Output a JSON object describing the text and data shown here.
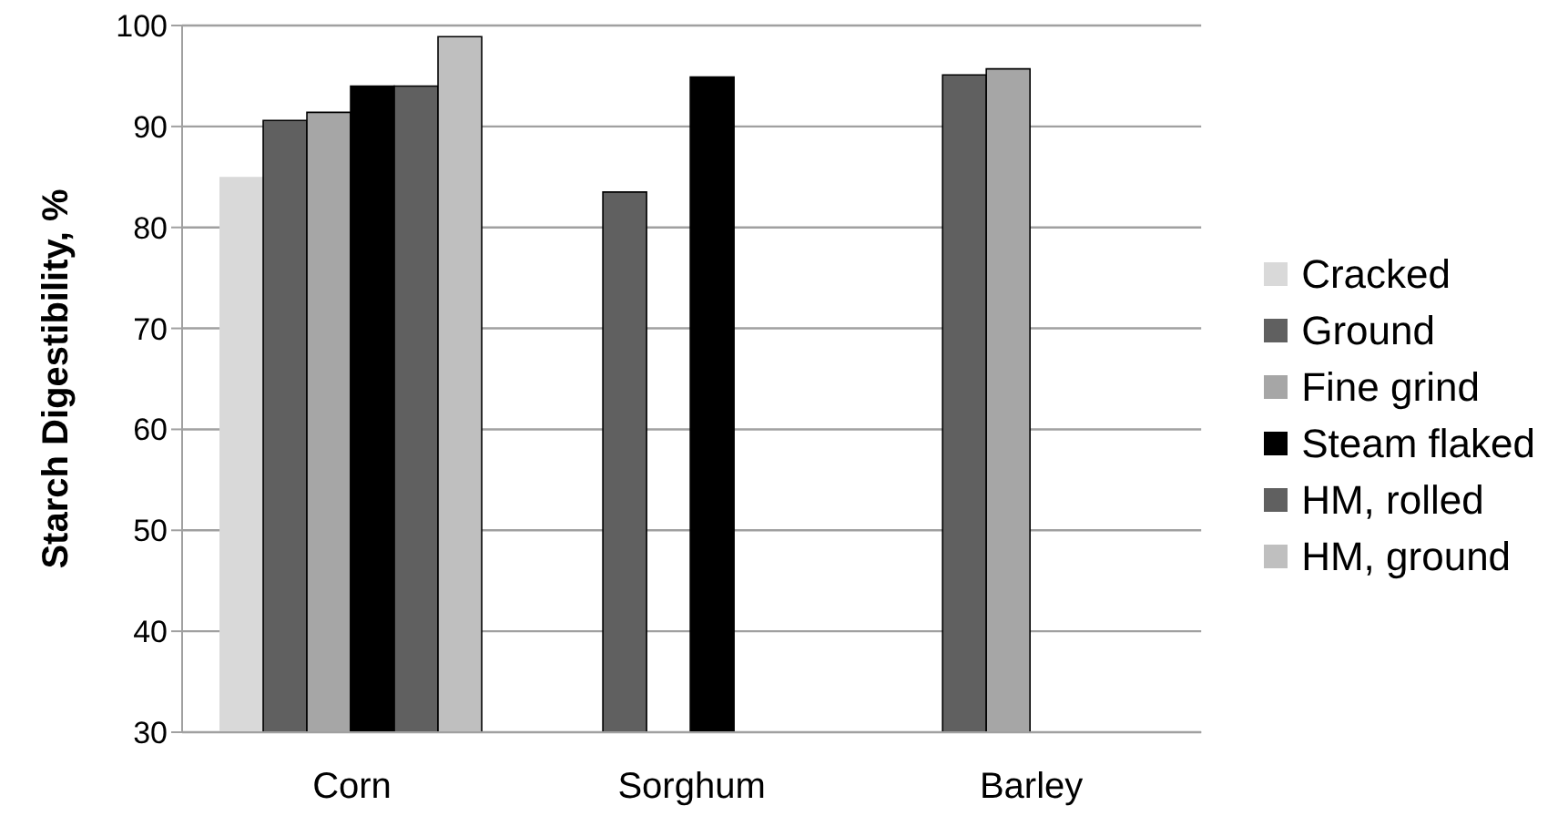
{
  "chart_data": {
    "type": "bar",
    "ylabel": "Starch Digestibility, %",
    "categories": [
      "Corn",
      "Sorghum",
      "Barley"
    ],
    "series": [
      {
        "name": "Cracked",
        "color": "#d9d9d9",
        "values": [
          85,
          null,
          null
        ]
      },
      {
        "name": "Ground",
        "color": "#606060",
        "values": [
          90.6,
          83.5,
          95.1
        ]
      },
      {
        "name": "Fine grind",
        "color": "#a6a6a6",
        "values": [
          91.4,
          null,
          95.7
        ]
      },
      {
        "name": "Steam flaked",
        "color": "#000000",
        "values": [
          94,
          94.9,
          null
        ]
      },
      {
        "name": "HM, rolled",
        "color": "#606060",
        "values": [
          94,
          null,
          null
        ]
      },
      {
        "name": "HM, ground",
        "color": "#bfbfbf",
        "values": [
          98.9,
          null,
          null
        ]
      }
    ],
    "ylim": [
      30,
      100
    ],
    "yticks": [
      30,
      40,
      50,
      60,
      70,
      80,
      90,
      100
    ],
    "grid": "y",
    "legend": "right"
  }
}
